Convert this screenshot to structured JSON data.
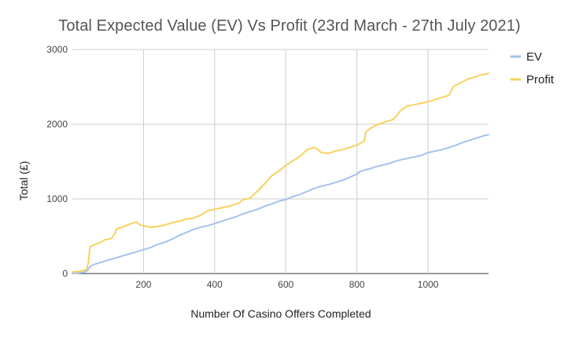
{
  "chart_data": {
    "type": "line",
    "title": "Total Expected Value (EV) Vs Profit (23rd March - 27th July 2021)",
    "xlabel": "Number Of Casino Offers Completed",
    "ylabel": "Total (£)",
    "xlim": [
      0,
      1170
    ],
    "ylim": [
      0,
      3000
    ],
    "xticks": [
      200,
      400,
      600,
      800,
      1000
    ],
    "xtick_labels": [
      "200",
      "400",
      "600",
      "800",
      "1000"
    ],
    "yticks": [
      0,
      1000,
      2000,
      3000
    ],
    "ytick_labels": [
      "0",
      "1000",
      "2000",
      "3000"
    ],
    "grid": true,
    "legend_position": "right",
    "series": [
      {
        "name": "EV",
        "color": "#a5c2ec",
        "points": [
          [
            0,
            0
          ],
          [
            10,
            5
          ],
          [
            30,
            15
          ],
          [
            40,
            30
          ],
          [
            45,
            60
          ],
          [
            50,
            95
          ],
          [
            60,
            120
          ],
          [
            80,
            150
          ],
          [
            100,
            180
          ],
          [
            130,
            220
          ],
          [
            150,
            250
          ],
          [
            180,
            290
          ],
          [
            200,
            320
          ],
          [
            220,
            350
          ],
          [
            240,
            390
          ],
          [
            260,
            420
          ],
          [
            280,
            460
          ],
          [
            300,
            510
          ],
          [
            320,
            550
          ],
          [
            340,
            590
          ],
          [
            360,
            620
          ],
          [
            380,
            640
          ],
          [
            400,
            670
          ],
          [
            420,
            700
          ],
          [
            440,
            730
          ],
          [
            460,
            760
          ],
          [
            480,
            800
          ],
          [
            500,
            830
          ],
          [
            520,
            860
          ],
          [
            540,
            900
          ],
          [
            560,
            930
          ],
          [
            580,
            970
          ],
          [
            600,
            990
          ],
          [
            620,
            1030
          ],
          [
            640,
            1060
          ],
          [
            660,
            1100
          ],
          [
            680,
            1140
          ],
          [
            700,
            1170
          ],
          [
            720,
            1190
          ],
          [
            740,
            1220
          ],
          [
            760,
            1250
          ],
          [
            780,
            1290
          ],
          [
            800,
            1330
          ],
          [
            810,
            1370
          ],
          [
            840,
            1410
          ],
          [
            860,
            1440
          ],
          [
            880,
            1460
          ],
          [
            900,
            1490
          ],
          [
            920,
            1520
          ],
          [
            940,
            1540
          ],
          [
            960,
            1560
          ],
          [
            980,
            1580
          ],
          [
            1000,
            1620
          ],
          [
            1020,
            1640
          ],
          [
            1040,
            1660
          ],
          [
            1060,
            1690
          ],
          [
            1080,
            1720
          ],
          [
            1100,
            1760
          ],
          [
            1120,
            1790
          ],
          [
            1140,
            1820
          ],
          [
            1160,
            1850
          ],
          [
            1170,
            1860
          ]
        ]
      },
      {
        "name": "Profit",
        "color": "#f7d25f",
        "points": [
          [
            0,
            20
          ],
          [
            20,
            30
          ],
          [
            40,
            50
          ],
          [
            45,
            150
          ],
          [
            50,
            360
          ],
          [
            60,
            380
          ],
          [
            80,
            420
          ],
          [
            90,
            450
          ],
          [
            100,
            460
          ],
          [
            110,
            470
          ],
          [
            120,
            540
          ],
          [
            125,
            600
          ],
          [
            140,
            620
          ],
          [
            160,
            660
          ],
          [
            180,
            690
          ],
          [
            190,
            650
          ],
          [
            200,
            640
          ],
          [
            220,
            620
          ],
          [
            240,
            630
          ],
          [
            260,
            650
          ],
          [
            280,
            680
          ],
          [
            300,
            700
          ],
          [
            320,
            730
          ],
          [
            340,
            740
          ],
          [
            350,
            760
          ],
          [
            360,
            780
          ],
          [
            380,
            840
          ],
          [
            400,
            860
          ],
          [
            420,
            880
          ],
          [
            440,
            900
          ],
          [
            460,
            930
          ],
          [
            470,
            950
          ],
          [
            480,
            990
          ],
          [
            500,
            1010
          ],
          [
            510,
            1060
          ],
          [
            520,
            1100
          ],
          [
            540,
            1200
          ],
          [
            560,
            1310
          ],
          [
            580,
            1370
          ],
          [
            600,
            1450
          ],
          [
            620,
            1510
          ],
          [
            640,
            1570
          ],
          [
            660,
            1660
          ],
          [
            680,
            1690
          ],
          [
            690,
            1660
          ],
          [
            700,
            1620
          ],
          [
            720,
            1610
          ],
          [
            740,
            1640
          ],
          [
            760,
            1660
          ],
          [
            780,
            1690
          ],
          [
            800,
            1720
          ],
          [
            820,
            1770
          ],
          [
            825,
            1900
          ],
          [
            840,
            1950
          ],
          [
            860,
            2000
          ],
          [
            880,
            2030
          ],
          [
            900,
            2060
          ],
          [
            910,
            2100
          ],
          [
            920,
            2170
          ],
          [
            940,
            2240
          ],
          [
            960,
            2260
          ],
          [
            980,
            2280
          ],
          [
            1000,
            2300
          ],
          [
            1020,
            2330
          ],
          [
            1040,
            2360
          ],
          [
            1060,
            2390
          ],
          [
            1070,
            2500
          ],
          [
            1090,
            2550
          ],
          [
            1110,
            2600
          ],
          [
            1130,
            2630
          ],
          [
            1150,
            2660
          ],
          [
            1170,
            2680
          ]
        ]
      }
    ]
  }
}
